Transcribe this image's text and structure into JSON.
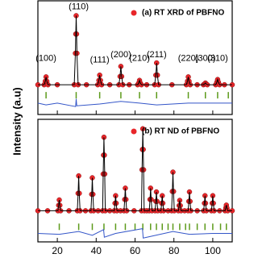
{
  "chart_data": [
    {
      "type": "scatter",
      "ylabel": "Intensity (a.u)",
      "xlim": [
        10,
        110
      ],
      "ylim": [
        -30,
        100
      ],
      "xticks": [
        20,
        40,
        60,
        80,
        100
      ],
      "xtick_labels": false,
      "legend": "upper right",
      "series": [
        {
          "name": "(a) RT XRD of PBFNO",
          "marker": "dot",
          "color": "#e8262a",
          "line_color": "#000000",
          "x": [
            10,
            13.2,
            13.8,
            14.2,
            14.6,
            15.2,
            20,
            28.7,
            29.3,
            29.5,
            29.7,
            29.9,
            30.1,
            30.7,
            35,
            40.8,
            41.4,
            41.8,
            42.2,
            42.8,
            47,
            51.7,
            52.3,
            52.7,
            53.1,
            53.7,
            57,
            61.3,
            61.9,
            62.3,
            62.7,
            63.3,
            66,
            70.1,
            70.7,
            71.1,
            71.5,
            72.1,
            79,
            86.4,
            87,
            87.4,
            87.8,
            88.4,
            92,
            95.2,
            95.8,
            96.2,
            96.6,
            97.2,
            101.5,
            102.1,
            102.5,
            102.9,
            103.5,
            106,
            110
          ],
          "values": [
            4,
            4,
            8,
            13,
            8,
            4,
            4,
            4,
            40,
            62,
            83,
            62,
            40,
            4,
            4,
            4,
            9,
            15,
            9,
            4,
            4,
            4,
            13.5,
            25,
            13.5,
            4,
            4,
            4,
            6,
            9,
            6,
            4,
            4,
            4,
            15,
            29,
            15,
            4,
            4,
            4,
            8,
            13,
            8,
            4,
            4,
            4,
            5,
            6,
            5,
            4,
            4,
            7,
            10,
            7,
            4,
            4,
            4
          ]
        },
        {
          "marker": "tick",
          "color": "#5c9a1a",
          "x": [
            14.2,
            29.7,
            41.8,
            52.7,
            62.3,
            71.1,
            87.4,
            96.2,
            102.5,
            108
          ],
          "values": [
            -8,
            -8,
            -8,
            -8,
            -8,
            -8,
            -8,
            -8,
            -8,
            -8
          ]
        },
        {
          "marker": "line",
          "color": "#3355c8",
          "x": [
            10,
            14.2,
            20,
            29.4,
            29.7,
            30,
            41.8,
            52.7,
            62.3,
            71.1,
            87.4,
            110
          ],
          "values": [
            -17,
            -19,
            -17,
            -21,
            -12,
            -20,
            -18,
            -15,
            -17,
            -19,
            -17,
            -17
          ]
        }
      ],
      "annotations": [
        {
          "text": "(100)",
          "x": 14.2,
          "y": 34
        },
        {
          "text": "(110)",
          "x": 31,
          "y": 93
        },
        {
          "text": "(111)",
          "x": 41.8,
          "y": 32
        },
        {
          "text": "(200)",
          "x": 52.7,
          "y": 38
        },
        {
          "text": "(210)",
          "x": 62.3,
          "y": 34
        },
        {
          "text": "(211)",
          "x": 71.1,
          "y": 38
        },
        {
          "text": "(220)",
          "x": 87.4,
          "y": 34
        },
        {
          "text": "(300)",
          "x": 96.2,
          "y": 34
        },
        {
          "text": "(310)",
          "x": 102.5,
          "y": 34
        }
      ]
    },
    {
      "type": "scatter",
      "xlim": [
        10,
        110
      ],
      "ylim": [
        -30,
        100
      ],
      "xticks": [
        20,
        40,
        60,
        80,
        100
      ],
      "xtick_labels": true,
      "legend": "upper right",
      "series": [
        {
          "name": "(b) RT ND of PBFNO",
          "marker": "dot",
          "color": "#e8262a",
          "line_color": "#000000",
          "x": [
            10,
            15,
            20.3,
            20.7,
            21,
            21.3,
            21.7,
            26,
            30.3,
            30.7,
            31,
            31.3,
            31.7,
            34.5,
            37.3,
            37.7,
            38,
            38.3,
            38.7,
            41,
            43.3,
            43.6,
            43.8,
            44,
            44.2,
            44.4,
            44.7,
            47,
            49.3,
            49.7,
            50,
            50.3,
            50.7,
            52.5,
            54.3,
            54.7,
            55,
            55.3,
            55.7,
            59.5,
            63.3,
            63.6,
            63.8,
            64,
            64.2,
            64.4,
            64.7,
            66,
            67.3,
            67.7,
            68,
            68.3,
            68.7,
            70.3,
            70.7,
            71,
            71.3,
            71.7,
            73.3,
            73.7,
            74,
            74.3,
            74.7,
            77,
            78.8,
            79.2,
            79.5,
            79.8,
            80.2,
            82.3,
            82.7,
            83,
            83.3,
            83.7,
            85.5,
            87.3,
            87.7,
            88,
            88.3,
            88.7,
            92,
            95.3,
            95.7,
            96,
            96.3,
            96.7,
            99.3,
            99.7,
            100,
            100.3,
            100.7,
            103.5,
            106.3,
            106.7,
            107,
            107.3,
            107.7,
            110
          ],
          "values": [
            3,
            3,
            3,
            8.8,
            14.5,
            8.8,
            3,
            3,
            3,
            21.5,
            40,
            21.5,
            3,
            3,
            3,
            20.5,
            38,
            20.5,
            3,
            3,
            3,
            42,
            62,
            81,
            62,
            42,
            3,
            3,
            3,
            11,
            19,
            11,
            3,
            3,
            3,
            15,
            27,
            15,
            3,
            3,
            3,
            46.5,
            68,
            90,
            68,
            46.5,
            3,
            3,
            3,
            15,
            27,
            15,
            3,
            3,
            13,
            23,
            13,
            3,
            3,
            11,
            19,
            11,
            3,
            3,
            3,
            23.5,
            44,
            23.5,
            3,
            3,
            8.5,
            14,
            8.5,
            3,
            3,
            3,
            13,
            23,
            13,
            3,
            3,
            3,
            11,
            19,
            11,
            3,
            3,
            11,
            19,
            11,
            3,
            3,
            3,
            6,
            9,
            6,
            3,
            3
          ]
        },
        {
          "marker": "tick",
          "color": "#5c9a1a",
          "x": [
            21,
            31,
            38,
            44,
            50,
            55,
            60,
            64,
            68,
            71,
            74,
            77,
            79.5,
            83,
            86,
            88,
            92,
            96,
            100,
            104,
            107
          ],
          "values": [
            -14,
            -14,
            -14,
            -14,
            -14,
            -14,
            -14,
            -14,
            -14,
            -14,
            -14,
            -14,
            -14,
            -14,
            -14,
            -14,
            -14,
            -14,
            -14,
            -14,
            -14
          ]
        },
        {
          "marker": "line",
          "color": "#3355c8",
          "x": [
            10,
            21,
            31,
            38,
            43.8,
            44.2,
            50,
            63.8,
            64.2,
            79.5,
            88,
            100,
            110
          ],
          "values": [
            -21,
            -22,
            -19,
            -23,
            -17,
            -25,
            -21,
            -16,
            -26,
            -19,
            -22,
            -21,
            -21
          ]
        }
      ]
    }
  ]
}
